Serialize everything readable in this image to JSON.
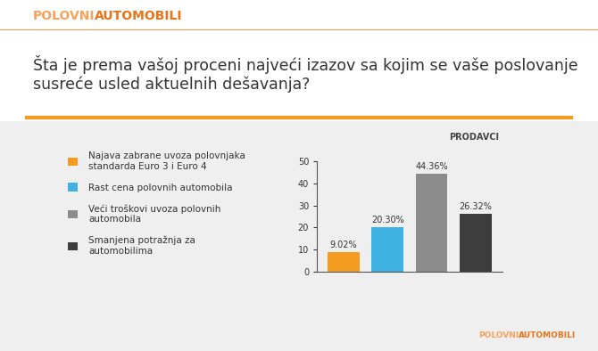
{
  "header": {
    "brand": [
      "POLOVNI",
      "AUTOMOBILI"
    ]
  },
  "footer": {
    "brand": [
      "POLOVNI",
      "AUTOMOBILI"
    ]
  },
  "chart_data": {
    "type": "bar",
    "title": "Šta je prema vašoj proceni najveći izazov sa kojim se vaše poslovanje susreće usled aktuelnih dešavanja?",
    "subtitle": "PRODAVCI",
    "categories": [
      "Najava zabrane uvoza polovnjaka standarda Euro 3 i Euro 4",
      "Rast cena polovnih automobila",
      "Veći troškovi uvoza polovnih automobila",
      "Smanjena potražnja za automobilima"
    ],
    "values": [
      9.02,
      20.3,
      44.36,
      26.32
    ],
    "value_labels": [
      "9.02%",
      "20.30%",
      "44.36%",
      "26.32%"
    ],
    "colors": [
      "#f39c1f",
      "#3fb1e3",
      "#8c8c8c",
      "#3d3d3d"
    ],
    "ylim": [
      0,
      50
    ],
    "yticks": [
      0,
      10,
      20,
      30,
      40,
      50
    ],
    "grid": false,
    "legend": "center left",
    "data_labels": true,
    "tick_labels": "y"
  }
}
